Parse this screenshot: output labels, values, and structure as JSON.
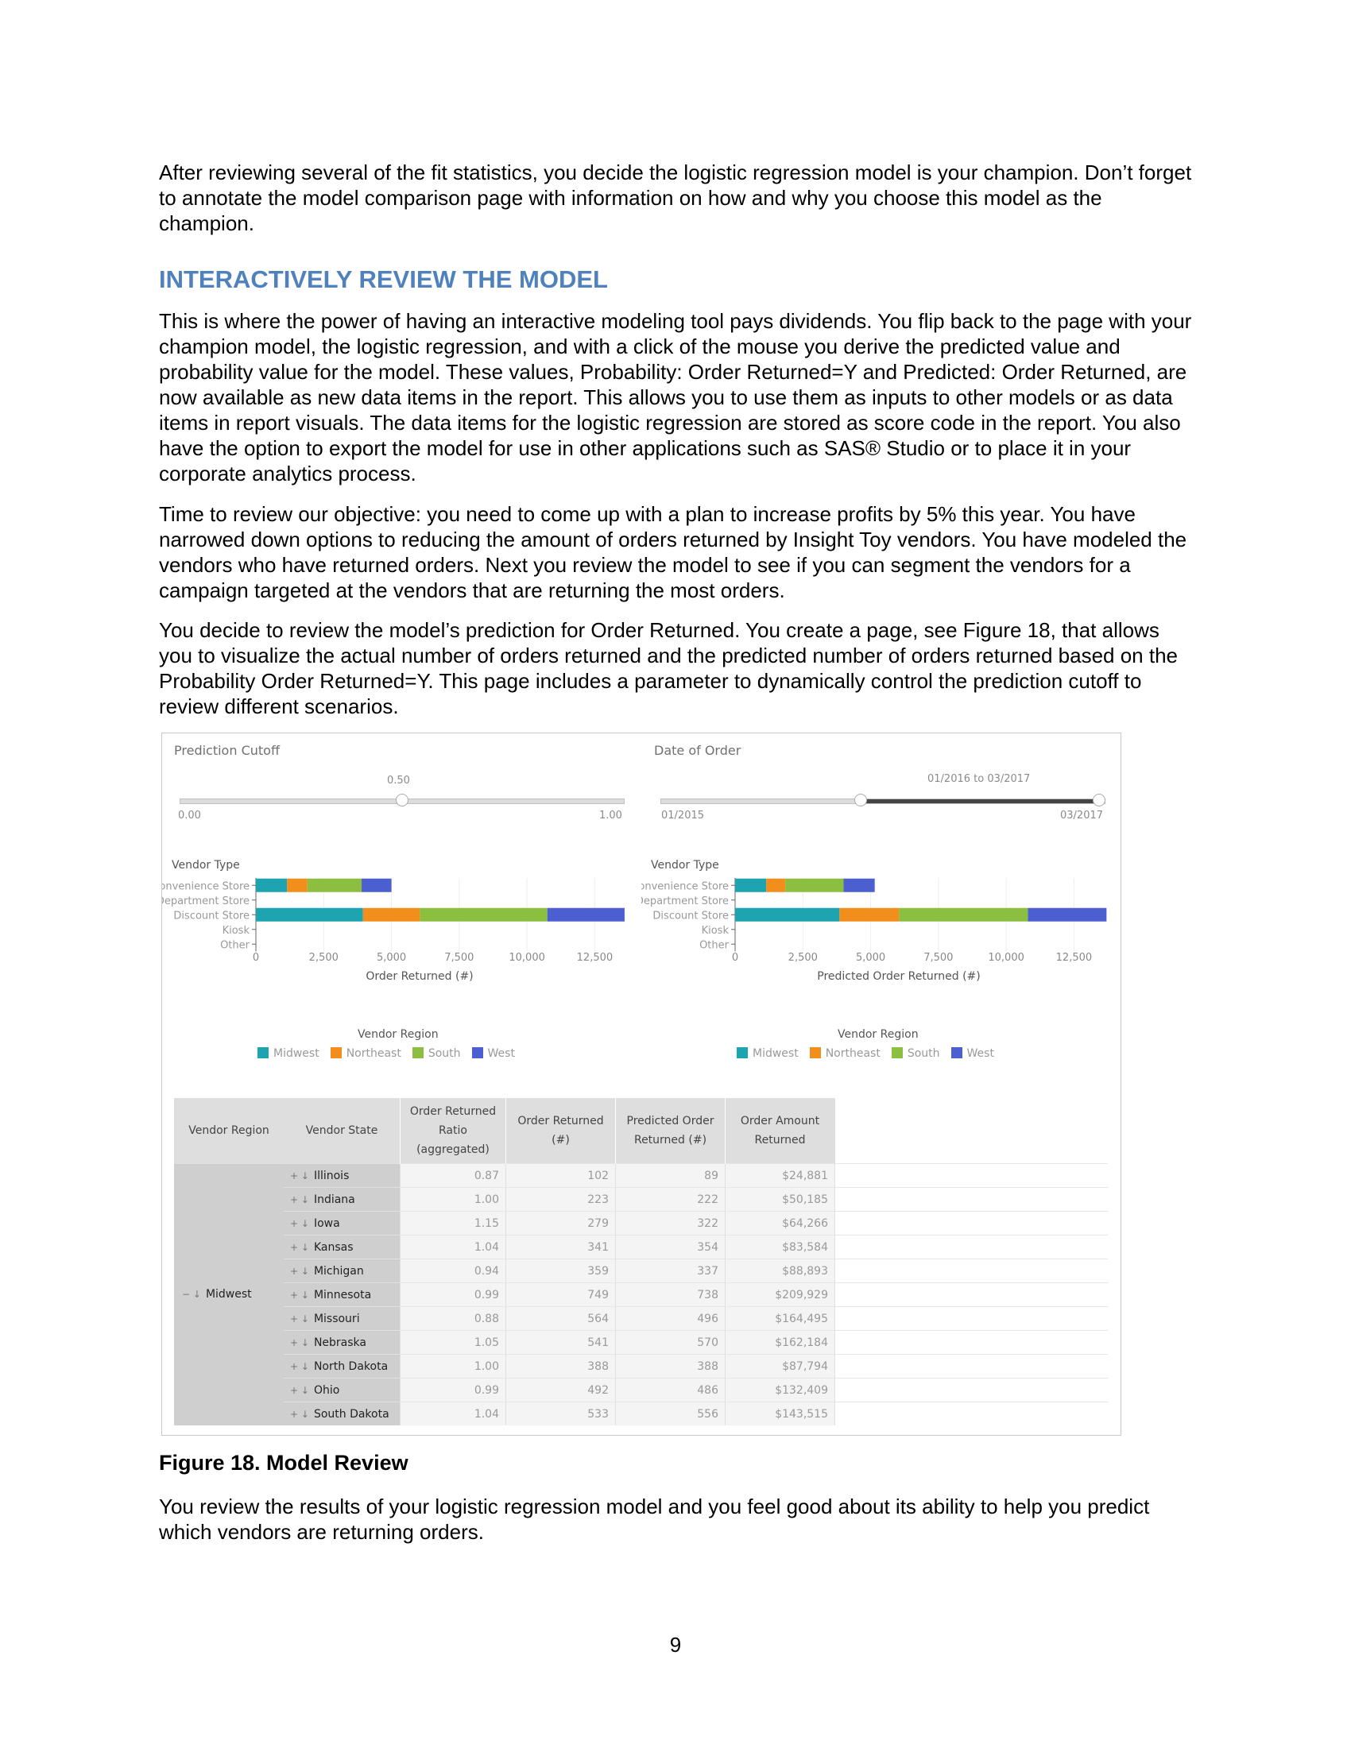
{
  "intro_paragraph": "After reviewing several of the fit statistics, you decide the logistic regression model is your champion. Don’t forget to annotate the model comparison page with information on how and why you choose this model as the champion.",
  "section_heading": "INTERACTIVELY REVIEW THE MODEL",
  "paragraph_1": "This is where the power of having an interactive modeling tool pays dividends.  You flip back to the page with your champion model, the logistic regression, and with a click of the mouse you derive the predicted value and probability value for the model.  These values, Probability: Order Returned=Y and Predicted: Order Returned, are now available as new data items in the report.  This allows you to use them as inputs to other models or as data items in report visuals.  The data items for the logistic regression are stored as score code in the report.  You also have the option to export the model for use in other applications such as SAS® Studio or to place it in your corporate analytics process.",
  "paragraph_2": "Time to review our objective: you need to come up with a plan to increase profits by 5% this year.  You have narrowed down options to reducing the amount of orders returned by Insight Toy vendors.  You have modeled the vendors who have returned orders.  Next you review the model to see if you can segment the vendors for a campaign targeted at the vendors that are returning the most orders.",
  "paragraph_3": "You decide to review the model’s prediction for Order Returned.  You create a page, see Figure 18, that allows you to visualize the actual number of orders returned and the predicted number of orders returned based on the Probability Order Returned=Y.  This page includes a parameter to dynamically control the prediction cutoff to review different scenarios.",
  "figure": {
    "prediction_cutoff": {
      "title": "Prediction Cutoff",
      "value": "0.50",
      "value_fraction": 0.5,
      "min": "0.00",
      "max": "1.00"
    },
    "date_of_order": {
      "title": "Date of Order",
      "range": "01/2016 to 03/2017",
      "min": "01/2015",
      "max": "03/2017",
      "start_fraction": 0.45,
      "end_fraction": 1.0
    },
    "legend": {
      "title": "Vendor Region"
    },
    "y_axis_title": "Vendor Type"
  },
  "chart_data": [
    {
      "type": "bar",
      "orientation": "horizontal",
      "stacked": true,
      "title": "",
      "ylabel": "Vendor Type",
      "xlabel": "Order Returned (#)",
      "categories": [
        "Convenience Store",
        "Department Store",
        "Discount Store",
        "Kiosk",
        "Other"
      ],
      "xlim": [
        0,
        13250
      ],
      "xticks": [
        "0",
        "2,500",
        "5,000",
        "7,500",
        "10,000",
        "12,500"
      ],
      "legend_title": "Vendor Region",
      "legend_position": "bottom",
      "series": [
        {
          "name": "Midwest",
          "color": "#1ea3b1",
          "values": [
            1150,
            0,
            3950,
            0,
            0
          ]
        },
        {
          "name": "Northeast",
          "color": "#f28e1c",
          "values": [
            750,
            0,
            2100,
            0,
            0
          ]
        },
        {
          "name": "South",
          "color": "#8cbf3f",
          "values": [
            2000,
            0,
            4700,
            0,
            0
          ]
        },
        {
          "name": "West",
          "color": "#4b5fd1",
          "values": [
            1100,
            0,
            2850,
            0,
            0
          ]
        }
      ]
    },
    {
      "type": "bar",
      "orientation": "horizontal",
      "stacked": true,
      "title": "",
      "ylabel": "Vendor Type",
      "xlabel": "Predicted Order Returned (#)",
      "categories": [
        "Convenience Store",
        "Department Store",
        "Discount Store",
        "Kiosk",
        "Other"
      ],
      "xlim": [
        0,
        13250
      ],
      "xticks": [
        "0",
        "2,500",
        "5,000",
        "7,500",
        "10,000",
        "12,500"
      ],
      "legend_title": "Vendor Region",
      "legend_position": "bottom",
      "series": [
        {
          "name": "Midwest",
          "color": "#1ea3b1",
          "values": [
            1150,
            0,
            3850,
            0,
            0
          ]
        },
        {
          "name": "Northeast",
          "color": "#f28e1c",
          "values": [
            700,
            0,
            2200,
            0,
            0
          ]
        },
        {
          "name": "South",
          "color": "#8cbf3f",
          "values": [
            2150,
            0,
            4750,
            0,
            0
          ]
        },
        {
          "name": "West",
          "color": "#4b5fd1",
          "values": [
            1150,
            0,
            2900,
            0,
            0
          ]
        }
      ]
    }
  ],
  "table": {
    "headers": [
      "Vendor Region",
      "Vendor State",
      "Order Returned Ratio (aggregated)",
      "Order Returned (#)",
      "Predicted Order Returned (#)",
      "Order Amount Returned"
    ],
    "region": "Midwest",
    "rows": [
      {
        "state": "Illinois",
        "ratio": "0.87",
        "returned": "102",
        "predicted": "89",
        "amount": "$24,881"
      },
      {
        "state": "Indiana",
        "ratio": "1.00",
        "returned": "223",
        "predicted": "222",
        "amount": "$50,185"
      },
      {
        "state": "Iowa",
        "ratio": "1.15",
        "returned": "279",
        "predicted": "322",
        "amount": "$64,266"
      },
      {
        "state": "Kansas",
        "ratio": "1.04",
        "returned": "341",
        "predicted": "354",
        "amount": "$83,584"
      },
      {
        "state": "Michigan",
        "ratio": "0.94",
        "returned": "359",
        "predicted": "337",
        "amount": "$88,893"
      },
      {
        "state": "Minnesota",
        "ratio": "0.99",
        "returned": "749",
        "predicted": "738",
        "amount": "$209,929"
      },
      {
        "state": "Missouri",
        "ratio": "0.88",
        "returned": "564",
        "predicted": "496",
        "amount": "$164,495"
      },
      {
        "state": "Nebraska",
        "ratio": "1.05",
        "returned": "541",
        "predicted": "570",
        "amount": "$162,184"
      },
      {
        "state": "North Dakota",
        "ratio": "1.00",
        "returned": "388",
        "predicted": "388",
        "amount": "$87,794"
      },
      {
        "state": "Ohio",
        "ratio": "0.99",
        "returned": "492",
        "predicted": "486",
        "amount": "$132,409"
      },
      {
        "state": "South Dakota",
        "ratio": "1.04",
        "returned": "533",
        "predicted": "556",
        "amount": "$143,515"
      }
    ]
  },
  "figure_caption": "Figure 18. Model Review",
  "closing_paragraph": "You review the results of your logistic regression model and you feel good about its ability to help you predict which vendors are returning orders.",
  "page_number": "9"
}
